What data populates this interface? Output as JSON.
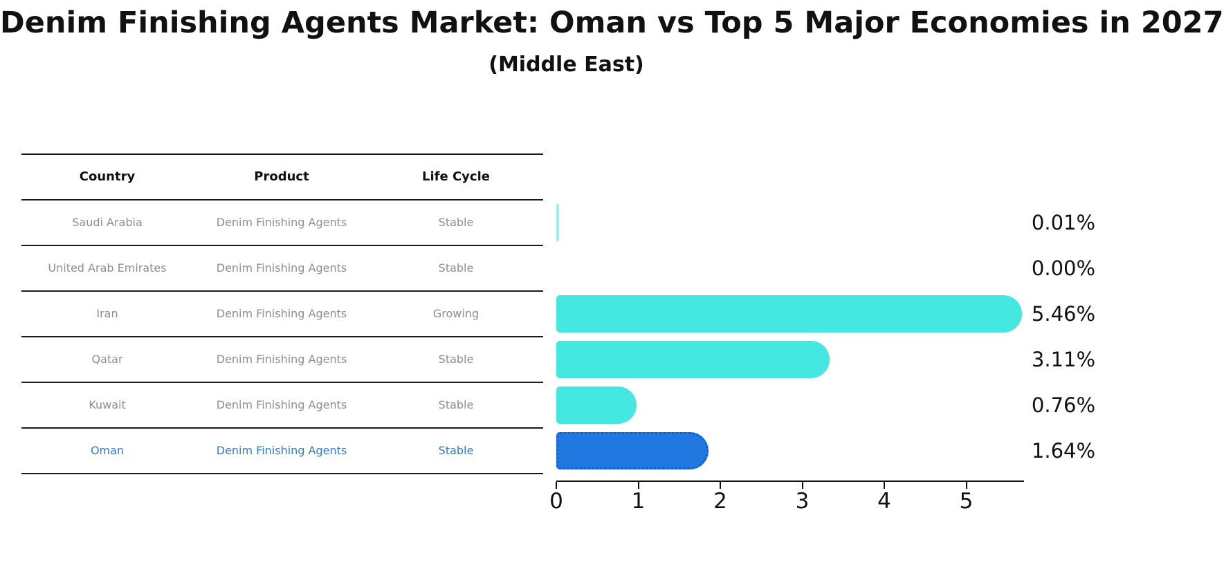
{
  "title": "Denim Finishing Agents Market: Oman vs Top 5 Major Economies in 2027",
  "subtitle": "(Middle East)",
  "table": {
    "headers": [
      "Country",
      "Product",
      "Life Cycle"
    ],
    "rows": [
      {
        "country": "Saudi Arabia",
        "product": "Denim Finishing Agents",
        "life_cycle": "Stable",
        "highlight": false
      },
      {
        "country": "United Arab Emirates",
        "product": "Denim Finishing Agents",
        "life_cycle": "Stable",
        "highlight": false
      },
      {
        "country": "Iran",
        "product": "Denim Finishing Agents",
        "life_cycle": "Growing",
        "highlight": false
      },
      {
        "country": "Qatar",
        "product": "Denim Finishing Agents",
        "life_cycle": "Stable",
        "highlight": false
      },
      {
        "country": "Kuwait",
        "product": "Denim Finishing Agents",
        "life_cycle": "Stable",
        "highlight": false
      },
      {
        "country": "Oman",
        "product": "Denim Finishing Agents",
        "life_cycle": "Stable",
        "highlight": true
      }
    ]
  },
  "chart_data": {
    "type": "bar",
    "orientation": "horizontal",
    "title": "Denim Finishing Agents Market: Oman vs Top 5 Major Economies in 2027",
    "subtitle": "(Middle East)",
    "categories": [
      "Saudi Arabia",
      "United Arab Emirates",
      "Iran",
      "Qatar",
      "Kuwait",
      "Oman"
    ],
    "values": [
      0.01,
      0.0,
      5.46,
      3.11,
      0.76,
      1.64
    ],
    "value_labels": [
      "0.01%",
      "0.00%",
      "5.46%",
      "3.11%",
      "0.76%",
      "1.64%"
    ],
    "x_ticks": [
      0,
      1,
      2,
      3,
      4,
      5
    ],
    "xlim": [
      0,
      5.7
    ],
    "xlabel": "",
    "ylabel": "",
    "grid": false,
    "legend": false,
    "bar_color": "#45e7e1",
    "highlight_bar_color": "#2078e0",
    "highlight_index": 5,
    "highlight_border_style": "dotted"
  }
}
